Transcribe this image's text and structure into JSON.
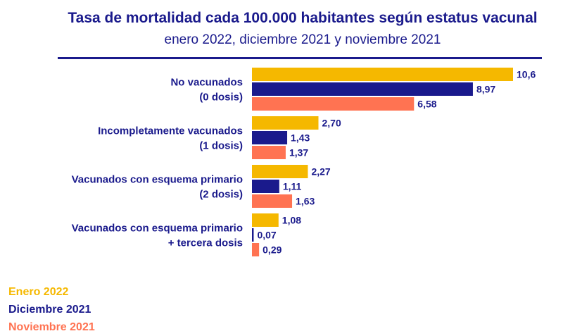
{
  "title": "Tasa de mortalidad cada 100.000 habitantes según estatus vacunal",
  "subtitle": "enero 2022, diciembre 2021 y noviembre 2021",
  "colors": {
    "title": "#1a1a8c",
    "series": [
      "#f5b800",
      "#1a1a8c",
      "#ff7352"
    ]
  },
  "chart_data": {
    "type": "bar",
    "orientation": "horizontal",
    "categories": [
      [
        "No vacunados",
        "(0 dosis)"
      ],
      [
        "Incompletamente vacunados",
        "(1 dosis)"
      ],
      [
        "Vacunados con esquema primario",
        "(2 dosis)"
      ],
      [
        "Vacunados con esquema primario",
        "+ tercera dosis"
      ]
    ],
    "series": [
      {
        "name": "Enero 2022",
        "values": [
          10.6,
          2.7,
          2.27,
          1.08
        ],
        "labels": [
          "10,6",
          "2,70",
          "2,27",
          "1,08"
        ]
      },
      {
        "name": "Diciembre 2021",
        "values": [
          8.97,
          1.43,
          1.11,
          0.07
        ],
        "labels": [
          "8,97",
          "1,43",
          "1,11",
          "0,07"
        ]
      },
      {
        "name": "Noviembre 2021",
        "values": [
          6.58,
          1.37,
          1.63,
          0.29
        ],
        "labels": [
          "6,58",
          "1,37",
          "1,63",
          "0,29"
        ]
      }
    ],
    "xlim": [
      0,
      10.6
    ],
    "grid": false,
    "legend_position": "bottom-left"
  }
}
